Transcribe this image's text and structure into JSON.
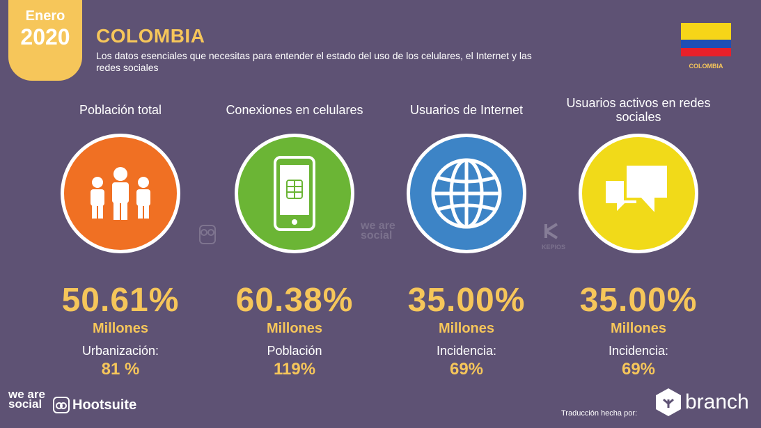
{
  "header": {
    "badge_month": "Enero",
    "badge_year": "2020",
    "title": "COLOMBIA",
    "subtitle": "Los datos esenciales que necesitas para entender el estado del uso de los celulares, el Internet y las redes sociales",
    "flag_caption": "COLOMBIA"
  },
  "colors": {
    "background": "#5e5274",
    "accent": "#f6c65a",
    "orange": "#f07023",
    "green": "#6bb535",
    "blue": "#3d84c6",
    "yellow": "#f1da19"
  },
  "stats": [
    {
      "label": "Población total",
      "icon": "people-icon",
      "value": "50.61%",
      "unit": "Millones",
      "desc": "Urbanización:",
      "desc_value": "81 %"
    },
    {
      "label": "Conexiones en celulares",
      "icon": "phone-icon",
      "value": "60.38%",
      "unit": "Millones",
      "desc": "Población",
      "desc_value": "119%"
    },
    {
      "label": "Usuarios de Internet",
      "icon": "globe-icon",
      "value": "35.00%",
      "unit": "Millones",
      "desc": "Incidencia:",
      "desc_value": "69%"
    },
    {
      "label": "Usuarios activos en redes sociales",
      "icon": "chat-icon",
      "value": "35.00%",
      "unit": "Millones",
      "desc": "Incidencia:",
      "desc_value": "69%"
    }
  ],
  "watermarks": {
    "we_are_social": "we are social",
    "kepios": "KEPIOS"
  },
  "footer": {
    "we_are_social": "we are social",
    "hootsuite": "Hootsuite",
    "translation": "Traducción hecha por:",
    "branch": "branch"
  }
}
